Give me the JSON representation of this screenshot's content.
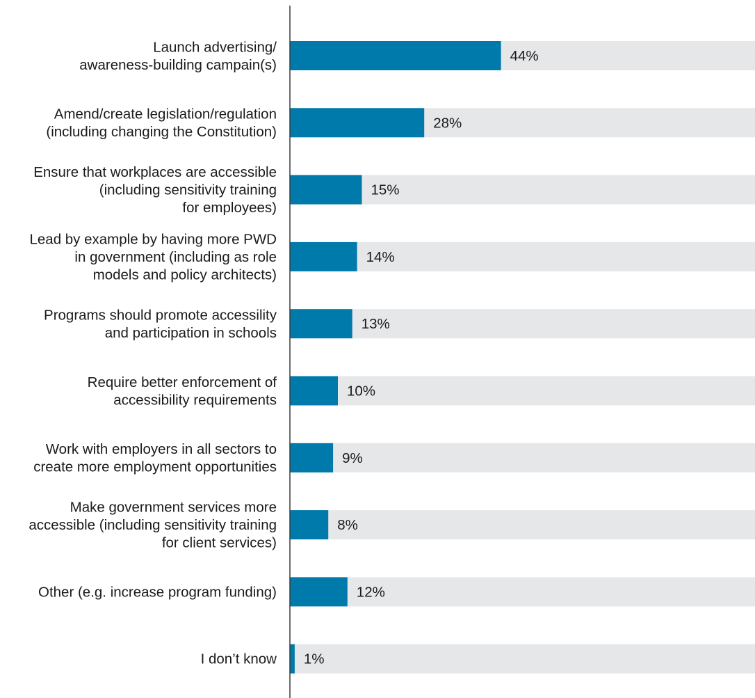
{
  "chart_data": {
    "type": "bar",
    "orientation": "horizontal",
    "categories": [
      [
        "Launch advertising/",
        "awareness-building campain(s)"
      ],
      [
        "Amend/create legislation/regulation",
        "(including changing the Constitution)"
      ],
      [
        "Ensure that workplaces are accessible",
        "(including sensitivity training",
        "for employees)"
      ],
      [
        "Lead by example by having more PWD",
        "in government (including as role",
        "models and policy architects)"
      ],
      [
        "Programs should promote accessility",
        "and participation in schools"
      ],
      [
        "Require better enforcement of",
        "accessibility requirements"
      ],
      [
        "Work with employers in all sectors to",
        "create more employment opportunities"
      ],
      [
        "Make government services more",
        "accessible (including sensitivity training",
        "for client services)"
      ],
      [
        "Other (e.g. increase program funding)"
      ],
      [
        "I don’t know"
      ]
    ],
    "values": [
      44,
      28,
      15,
      14,
      13,
      10,
      9,
      8,
      12,
      1
    ],
    "value_labels": [
      "44%",
      "28%",
      "15%",
      "14%",
      "13%",
      "10%",
      "9%",
      "8%",
      "12%",
      "1%"
    ],
    "xlim": [
      0,
      100
    ],
    "grid": false,
    "legend": "none",
    "colors": {
      "bar": "#0079ab",
      "track": "#e6e7e8",
      "axis": "#3a3a3a",
      "text": "#1a1a1a"
    }
  }
}
